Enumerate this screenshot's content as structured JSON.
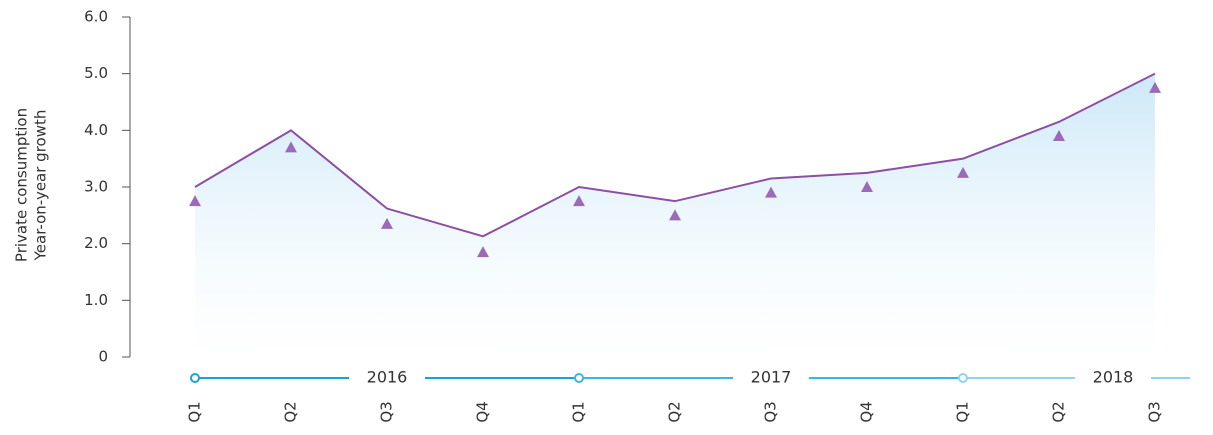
{
  "chart_data": {
    "type": "line",
    "ylabel": [
      "Private consumption",
      "Year-on-year growth"
    ],
    "categories": [
      "Q1",
      "Q2",
      "Q3",
      "Q4",
      "Q1",
      "Q2",
      "Q3",
      "Q4",
      "Q1",
      "Q2",
      "Q3"
    ],
    "years": [
      "2016",
      "2017",
      "2018"
    ],
    "series": [
      {
        "color": "#8b4fa3",
        "values": [
          3.0,
          4.0,
          2.62,
          2.13,
          3.0,
          2.75,
          3.15,
          3.25,
          3.5,
          4.15,
          5.0
        ]
      },
      {
        "color": "#9b6bb8",
        "marker": "triangle",
        "values": [
          2.75,
          3.7,
          2.35,
          1.85,
          2.75,
          2.5,
          2.9,
          3.0,
          3.25,
          3.9,
          4.75
        ]
      }
    ],
    "ylim": [
      0,
      6
    ],
    "yticks": [
      0,
      {
        "value": 1,
        "label": "1.0"
      },
      {
        "value": 2,
        "label": "2.0"
      },
      {
        "value": 3,
        "label": "3.0"
      },
      {
        "value": 4,
        "label": "4.0"
      },
      {
        "value": 5,
        "label": "5.0"
      },
      {
        "value": 6,
        "label": "6.0"
      }
    ]
  }
}
